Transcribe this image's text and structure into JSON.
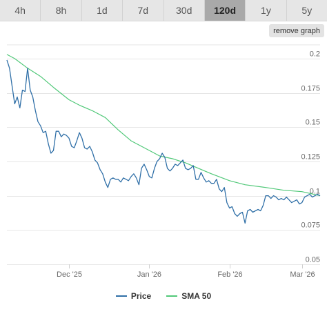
{
  "tabs": [
    {
      "label": "4h",
      "active": false
    },
    {
      "label": "8h",
      "active": false
    },
    {
      "label": "1d",
      "active": false
    },
    {
      "label": "7d",
      "active": false
    },
    {
      "label": "30d",
      "active": false
    },
    {
      "label": "120d",
      "active": true
    },
    {
      "label": "1y",
      "active": false
    },
    {
      "label": "5y",
      "active": false
    }
  ],
  "remove_graph_label": "remove graph",
  "colors": {
    "price": "#2f6fa7",
    "sma": "#50c878",
    "grid": "#e6e6e6"
  },
  "chart_data": {
    "type": "line",
    "title": "",
    "xlabel": "",
    "ylabel": "",
    "ylim": [
      0.05,
      0.21
    ],
    "xlim": [
      "2025-11-07",
      "2026-03-08"
    ],
    "yticks": [
      {
        "value": 0.05,
        "label": "0.05"
      },
      {
        "value": 0.075,
        "label": "0.075"
      },
      {
        "value": 0.1,
        "label": "0.1"
      },
      {
        "value": 0.125,
        "label": "0.125"
      },
      {
        "value": 0.15,
        "label": "0.15"
      },
      {
        "value": 0.175,
        "label": "0.175"
      },
      {
        "value": 0.2,
        "label": "0.2"
      }
    ],
    "xticks": [
      {
        "date": "2025-12-01",
        "label": "Dec '25"
      },
      {
        "date": "2026-01-01",
        "label": "Jan '26"
      },
      {
        "date": "2026-02-01",
        "label": "Feb '26"
      },
      {
        "date": "2026-03-01",
        "label": "Mar '26"
      }
    ],
    "legend": "bottom",
    "grid": true,
    "series": [
      {
        "name": "Price",
        "color": "#2f6fa7",
        "points": [
          [
            "2025-11-07",
            0.199
          ],
          [
            "2025-11-08",
            0.193
          ],
          [
            "2025-11-09",
            0.18
          ],
          [
            "2025-11-10",
            0.167
          ],
          [
            "2025-11-11",
            0.172
          ],
          [
            "2025-11-12",
            0.164
          ],
          [
            "2025-11-13",
            0.177
          ],
          [
            "2025-11-14",
            0.176
          ],
          [
            "2025-11-15",
            0.193
          ],
          [
            "2025-11-16",
            0.177
          ],
          [
            "2025-11-17",
            0.172
          ],
          [
            "2025-11-18",
            0.162
          ],
          [
            "2025-11-19",
            0.154
          ],
          [
            "2025-11-20",
            0.151
          ],
          [
            "2025-11-21",
            0.146
          ],
          [
            "2025-11-22",
            0.147
          ],
          [
            "2025-11-23",
            0.138
          ],
          [
            "2025-11-24",
            0.131
          ],
          [
            "2025-11-25",
            0.133
          ],
          [
            "2025-11-26",
            0.147
          ],
          [
            "2025-11-27",
            0.147
          ],
          [
            "2025-11-28",
            0.143
          ],
          [
            "2025-11-29",
            0.145
          ],
          [
            "2025-11-30",
            0.144
          ],
          [
            "2025-12-01",
            0.142
          ],
          [
            "2025-12-02",
            0.136
          ],
          [
            "2025-12-03",
            0.135
          ],
          [
            "2025-12-04",
            0.14
          ],
          [
            "2025-12-05",
            0.146
          ],
          [
            "2025-12-06",
            0.142
          ],
          [
            "2025-12-07",
            0.135
          ],
          [
            "2025-12-08",
            0.134
          ],
          [
            "2025-12-09",
            0.136
          ],
          [
            "2025-12-10",
            0.132
          ],
          [
            "2025-12-11",
            0.126
          ],
          [
            "2025-12-12",
            0.124
          ],
          [
            "2025-12-13",
            0.119
          ],
          [
            "2025-12-14",
            0.116
          ],
          [
            "2025-12-15",
            0.11
          ],
          [
            "2025-12-16",
            0.106
          ],
          [
            "2025-12-17",
            0.112
          ],
          [
            "2025-12-18",
            0.113
          ],
          [
            "2025-12-19",
            0.112
          ],
          [
            "2025-12-20",
            0.112
          ],
          [
            "2025-12-21",
            0.11
          ],
          [
            "2025-12-22",
            0.113
          ],
          [
            "2025-12-23",
            0.112
          ],
          [
            "2025-12-24",
            0.111
          ],
          [
            "2025-12-25",
            0.114
          ],
          [
            "2025-12-26",
            0.116
          ],
          [
            "2025-12-27",
            0.113
          ],
          [
            "2025-12-28",
            0.108
          ],
          [
            "2025-12-29",
            0.12
          ],
          [
            "2025-12-30",
            0.123
          ],
          [
            "2025-12-31",
            0.119
          ],
          [
            "2026-01-01",
            0.114
          ],
          [
            "2026-01-02",
            0.113
          ],
          [
            "2026-01-03",
            0.12
          ],
          [
            "2026-01-04",
            0.125
          ],
          [
            "2026-01-05",
            0.127
          ],
          [
            "2026-01-06",
            0.131
          ],
          [
            "2026-01-07",
            0.128
          ],
          [
            "2026-01-08",
            0.12
          ],
          [
            "2026-01-09",
            0.118
          ],
          [
            "2026-01-10",
            0.12
          ],
          [
            "2026-01-11",
            0.123
          ],
          [
            "2026-01-12",
            0.122
          ],
          [
            "2026-01-13",
            0.124
          ],
          [
            "2026-01-14",
            0.126
          ],
          [
            "2026-01-15",
            0.12
          ],
          [
            "2026-01-16",
            0.119
          ],
          [
            "2026-01-17",
            0.12
          ],
          [
            "2026-01-18",
            0.122
          ],
          [
            "2026-01-19",
            0.112
          ],
          [
            "2026-01-20",
            0.112
          ],
          [
            "2026-01-21",
            0.117
          ],
          [
            "2026-01-22",
            0.113
          ],
          [
            "2026-01-23",
            0.11
          ],
          [
            "2026-01-24",
            0.111
          ],
          [
            "2026-01-25",
            0.109
          ],
          [
            "2026-01-26",
            0.109
          ],
          [
            "2026-01-27",
            0.112
          ],
          [
            "2026-01-28",
            0.105
          ],
          [
            "2026-01-29",
            0.103
          ],
          [
            "2026-01-30",
            0.106
          ],
          [
            "2026-01-31",
            0.095
          ],
          [
            "2026-02-01",
            0.091
          ],
          [
            "2026-02-02",
            0.092
          ],
          [
            "2026-02-03",
            0.087
          ],
          [
            "2026-02-04",
            0.085
          ],
          [
            "2026-02-05",
            0.087
          ],
          [
            "2026-02-06",
            0.088
          ],
          [
            "2026-02-07",
            0.08
          ],
          [
            "2026-02-08",
            0.089
          ],
          [
            "2026-02-09",
            0.09
          ],
          [
            "2026-02-10",
            0.088
          ],
          [
            "2026-02-11",
            0.089
          ],
          [
            "2026-02-12",
            0.09
          ],
          [
            "2026-02-13",
            0.089
          ],
          [
            "2026-02-14",
            0.093
          ],
          [
            "2026-02-15",
            0.1
          ],
          [
            "2026-02-16",
            0.1
          ],
          [
            "2026-02-17",
            0.098
          ],
          [
            "2026-02-18",
            0.1
          ],
          [
            "2026-02-19",
            0.099
          ],
          [
            "2026-02-20",
            0.097
          ],
          [
            "2026-02-21",
            0.098
          ],
          [
            "2026-02-22",
            0.097
          ],
          [
            "2026-02-23",
            0.099
          ],
          [
            "2026-02-24",
            0.097
          ],
          [
            "2026-02-25",
            0.095
          ],
          [
            "2026-02-26",
            0.096
          ],
          [
            "2026-02-27",
            0.097
          ],
          [
            "2026-02-28",
            0.094
          ],
          [
            "2026-03-01",
            0.095
          ],
          [
            "2026-03-02",
            0.099
          ],
          [
            "2026-03-03",
            0.1
          ],
          [
            "2026-03-04",
            0.101
          ],
          [
            "2026-03-05",
            0.099
          ],
          [
            "2026-03-06",
            0.1
          ],
          [
            "2026-03-07",
            0.101
          ],
          [
            "2026-03-08",
            0.1
          ]
        ]
      },
      {
        "name": "SMA 50",
        "color": "#50c878",
        "points": [
          [
            "2025-11-07",
            0.203
          ],
          [
            "2025-11-10",
            0.2
          ],
          [
            "2025-11-15",
            0.193
          ],
          [
            "2025-11-20",
            0.187
          ],
          [
            "2025-11-25",
            0.179
          ],
          [
            "2025-12-01",
            0.17
          ],
          [
            "2025-12-05",
            0.166
          ],
          [
            "2025-12-10",
            0.162
          ],
          [
            "2025-12-15",
            0.157
          ],
          [
            "2025-12-20",
            0.148
          ],
          [
            "2025-12-25",
            0.14
          ],
          [
            "2026-01-01",
            0.133
          ],
          [
            "2026-01-05",
            0.129
          ],
          [
            "2026-01-10",
            0.127
          ],
          [
            "2026-01-15",
            0.124
          ],
          [
            "2026-01-20",
            0.12
          ],
          [
            "2026-01-25",
            0.116
          ],
          [
            "2026-02-01",
            0.111
          ],
          [
            "2026-02-07",
            0.108
          ],
          [
            "2026-02-15",
            0.106
          ],
          [
            "2026-02-22",
            0.104
          ],
          [
            "2026-03-01",
            0.103
          ],
          [
            "2026-03-08",
            0.1
          ]
        ]
      }
    ]
  }
}
